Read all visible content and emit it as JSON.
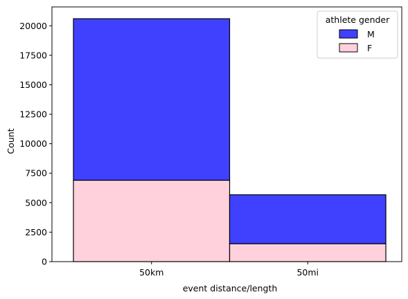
{
  "chart_data": {
    "type": "bar",
    "stacked": true,
    "categories": [
      "50km",
      "50mi"
    ],
    "series": [
      {
        "name": "M",
        "values": [
          13700,
          4150
        ],
        "color": "#4040ff"
      },
      {
        "name": "F",
        "values": [
          6900,
          1520
        ],
        "color": "#ffd1dc"
      }
    ],
    "title": "",
    "xlabel": "event distance/length",
    "ylabel": "Count",
    "ylim": [
      0,
      21600
    ],
    "yticks": [
      0,
      2500,
      5000,
      7500,
      10000,
      12500,
      15000,
      17500,
      20000
    ],
    "ytick_labels": [
      "0",
      "2500",
      "5000",
      "7500",
      "10000",
      "12500",
      "15000",
      "17500",
      "20000"
    ],
    "grid": false,
    "legend": {
      "title": "athlete gender",
      "placement": "top-right",
      "entries": [
        "M",
        "F"
      ]
    }
  }
}
